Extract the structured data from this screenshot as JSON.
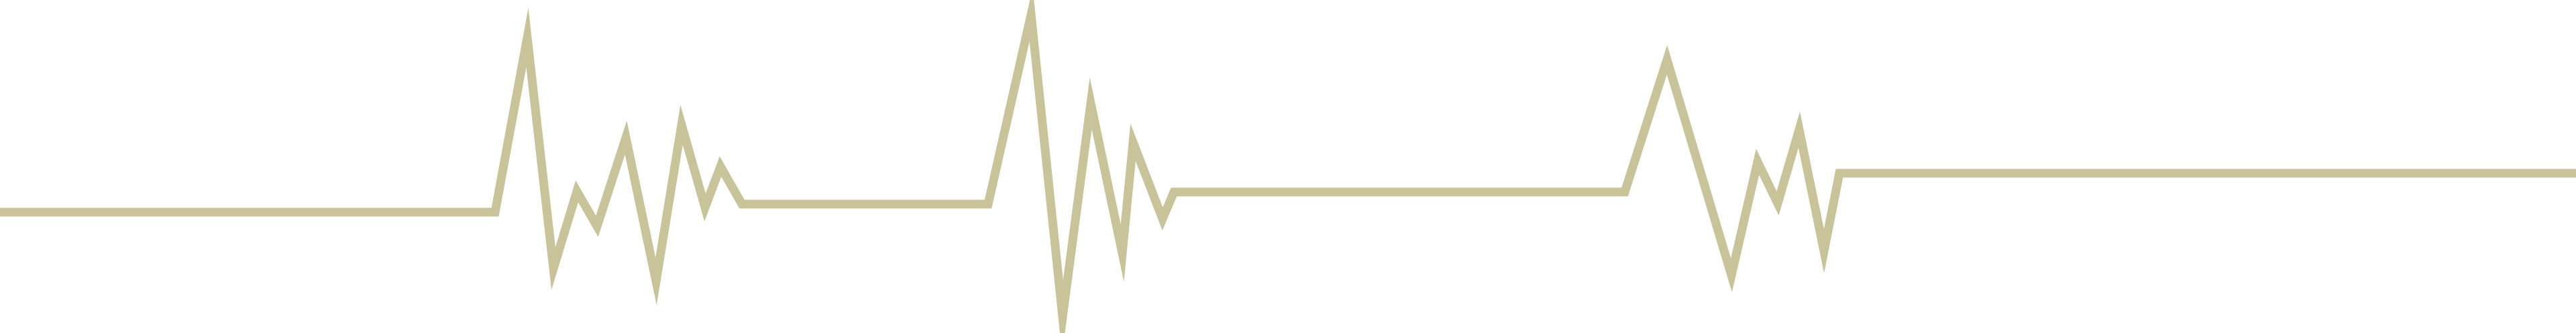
{
  "waveform": {
    "stroke_color": "#c8c399",
    "background_color": "#ffffff"
  }
}
